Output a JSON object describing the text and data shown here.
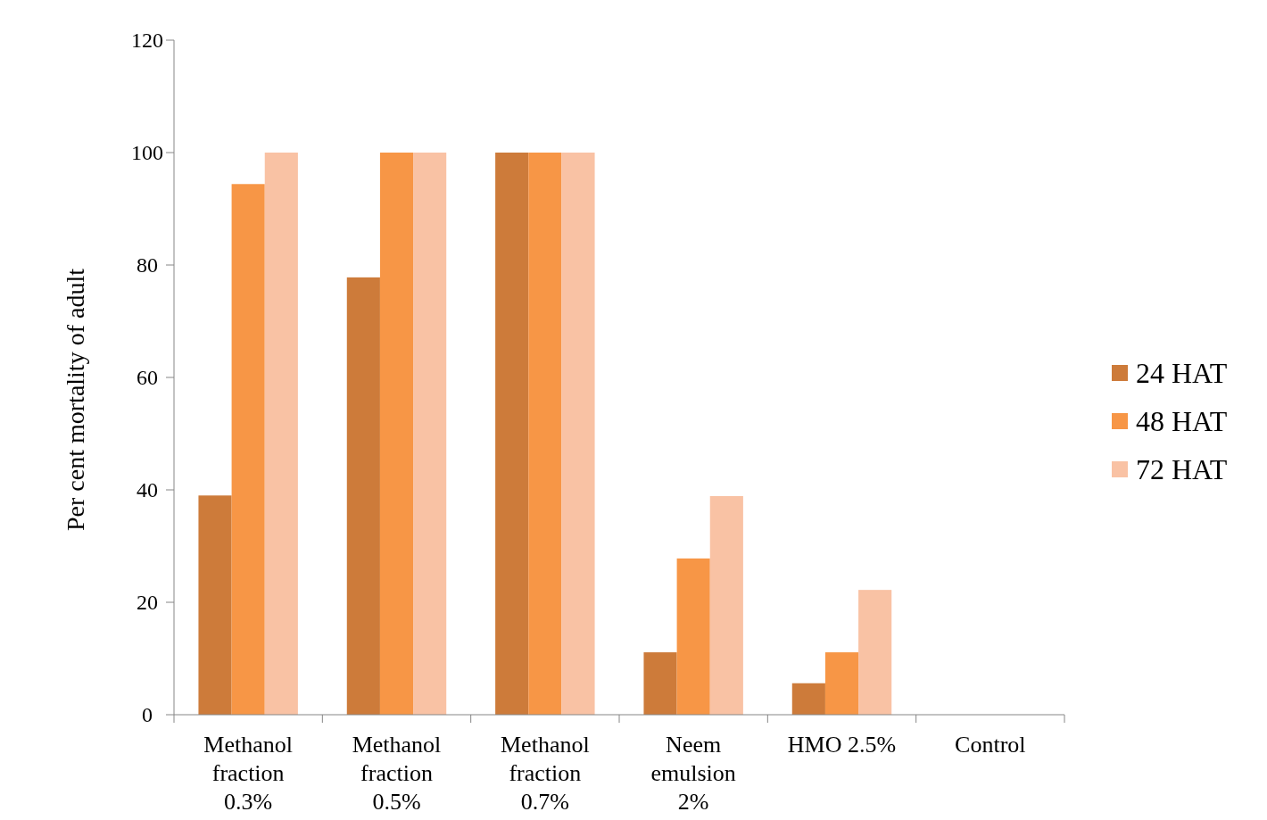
{
  "chart_data": {
    "type": "bar",
    "ylabel": "Per cent mortality of adult",
    "categories": [
      "Methanol fraction 0.3%",
      "Methanol fraction 0.5%",
      "Methanol fraction 0.7%",
      "Neem emulsion 2%",
      "HMO 2.5%",
      "Control"
    ],
    "series": [
      {
        "name": "24 HAT",
        "color": "#cd7b3a",
        "values": [
          39,
          77.8,
          100,
          11.1,
          5.6,
          0
        ]
      },
      {
        "name": "48 HAT",
        "color": "#f79646",
        "values": [
          94.4,
          100,
          100,
          27.8,
          11.1,
          0
        ]
      },
      {
        "name": "72 HAT",
        "color": "#f9c2a4",
        "values": [
          100,
          100,
          100,
          38.9,
          22.2,
          0
        ]
      }
    ],
    "ylim": [
      0,
      120
    ],
    "yticks": [
      0,
      20,
      40,
      60,
      80,
      100,
      120
    ],
    "grid": false,
    "legend": "right"
  }
}
